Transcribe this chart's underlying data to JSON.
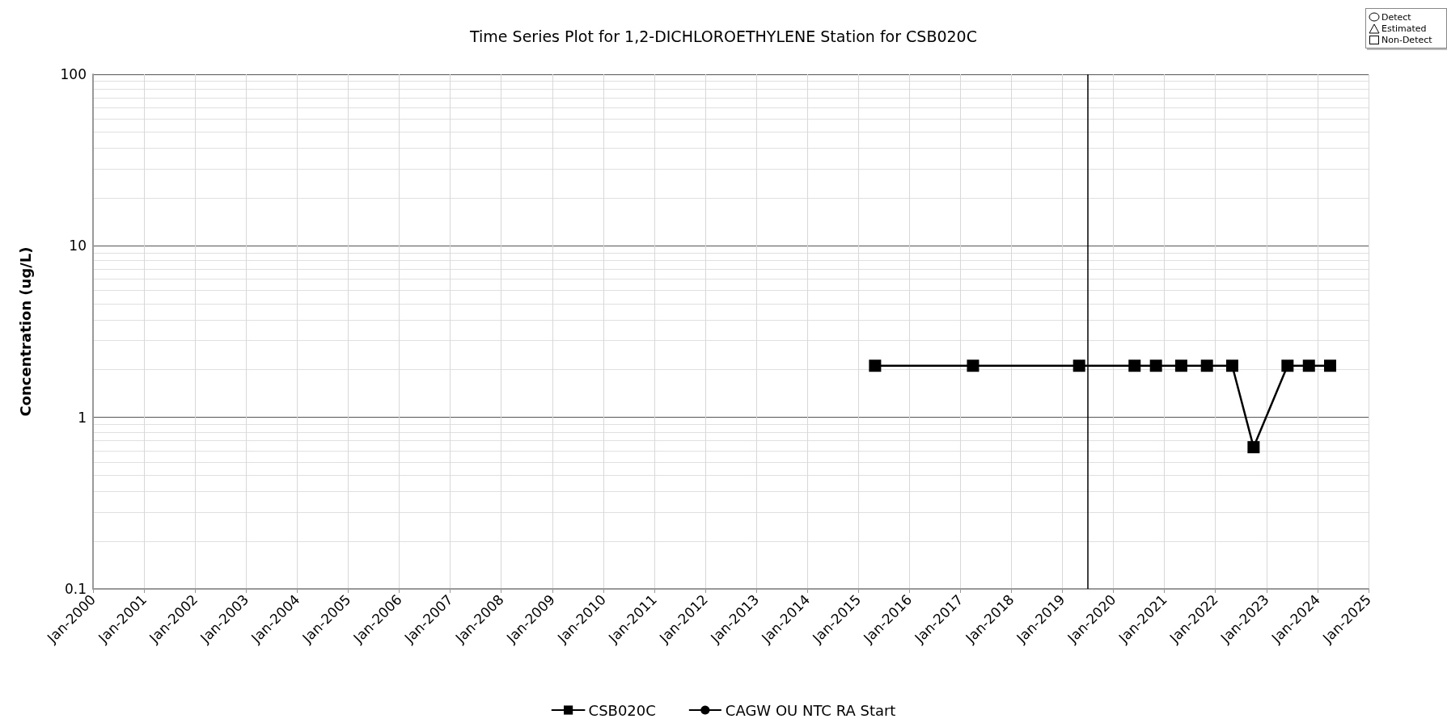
{
  "chart_data": {
    "type": "line",
    "title": "Time Series Plot for 1,2-DICHLOROETHYLENE Station for CSB020C",
    "ylabel": "Concentration (ug/L)",
    "series": [
      {
        "name": "CSB020C",
        "color": "#000000",
        "marker": "square",
        "x": [
          "2015-05",
          "2017-04",
          "2019-05",
          "2020-06",
          "2020-11",
          "2021-05",
          "2021-11",
          "2022-05",
          "2022-10",
          "2023-06",
          "2023-11",
          "2024-04"
        ],
        "values": [
          2,
          2,
          2,
          2,
          2,
          2,
          2,
          2,
          0.67,
          2,
          2,
          2
        ]
      }
    ],
    "ref_lines": [
      {
        "axis": "x",
        "value": "2019-07",
        "label": "CAGW OU NTC RA Start",
        "color": "#000000"
      }
    ],
    "annotations": [
      "Detect",
      "Estimated",
      "Non-Detect"
    ],
    "log": "y",
    "ylim": [
      0.1,
      100
    ],
    "yticks": [
      0.1,
      1,
      10,
      100
    ],
    "xlim": [
      "2000-01",
      "2025-01"
    ],
    "xticks": [
      {
        "value": "2000-01",
        "label": "Jan-2000"
      },
      {
        "value": "2001-01",
        "label": "Jan-2001"
      },
      {
        "value": "2002-01",
        "label": "Jan-2002"
      },
      {
        "value": "2003-01",
        "label": "Jan-2003"
      },
      {
        "value": "2004-01",
        "label": "Jan-2004"
      },
      {
        "value": "2005-01",
        "label": "Jan-2005"
      },
      {
        "value": "2006-01",
        "label": "Jan-2006"
      },
      {
        "value": "2007-01",
        "label": "Jan-2007"
      },
      {
        "value": "2008-01",
        "label": "Jan-2008"
      },
      {
        "value": "2009-01",
        "label": "Jan-2009"
      },
      {
        "value": "2010-01",
        "label": "Jan-2010"
      },
      {
        "value": "2011-01",
        "label": "Jan-2011"
      },
      {
        "value": "2012-01",
        "label": "Jan-2012"
      },
      {
        "value": "2013-01",
        "label": "Jan-2013"
      },
      {
        "value": "2014-01",
        "label": "Jan-2014"
      },
      {
        "value": "2015-01",
        "label": "Jan-2015"
      },
      {
        "value": "2016-01",
        "label": "Jan-2016"
      },
      {
        "value": "2017-01",
        "label": "Jan-2017"
      },
      {
        "value": "2018-01",
        "label": "Jan-2018"
      },
      {
        "value": "2019-01",
        "label": "Jan-2019"
      },
      {
        "value": "2020-01",
        "label": "Jan-2020"
      },
      {
        "value": "2021-01",
        "label": "Jan-2021"
      },
      {
        "value": "2022-01",
        "label": "Jan-2022"
      },
      {
        "value": "2023-01",
        "label": "Jan-2023"
      },
      {
        "value": "2024-01",
        "label": "Jan-2024"
      },
      {
        "value": "2025-01",
        "label": "Jan-2025"
      }
    ],
    "grid": true,
    "legend": "bottom",
    "line_style": "solid"
  }
}
